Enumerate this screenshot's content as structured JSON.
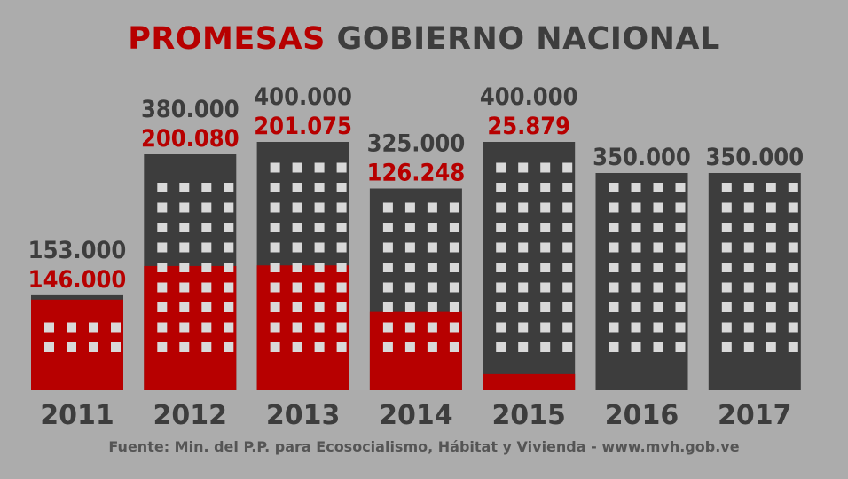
{
  "header": {
    "title_red": "PROMESAS",
    "title_dark": "GOBIERNO NACIONAL"
  },
  "footer": {
    "source": "Fuente: Min. del P.P. para Ecosocialismo, Hábitat y Vivienda - www.mvh.gob.ve"
  },
  "colors": {
    "background": "#acacac",
    "promised": "#3d3d3d",
    "built": "#b70000",
    "window": "#d9d9d9"
  },
  "chart_data": {
    "type": "bar",
    "categories": [
      "2011",
      "2012",
      "2013",
      "2014",
      "2015",
      "2016",
      "2017"
    ],
    "series": [
      {
        "values": [
          153000,
          380000,
          400000,
          325000,
          400000,
          350000,
          350000
        ],
        "labels": [
          "153.000",
          "380.000",
          "400.000",
          "325.000",
          "400.000",
          "350.000",
          "350.000"
        ]
      },
      {
        "values": [
          146000,
          200080,
          201075,
          126248,
          25879,
          null,
          null
        ],
        "labels": [
          "146.000",
          "200.080",
          "201.075",
          "126.248",
          "25.879",
          "",
          ""
        ]
      }
    ],
    "ylim": [
      0,
      400000
    ],
    "grid": false,
    "legend": "none"
  }
}
